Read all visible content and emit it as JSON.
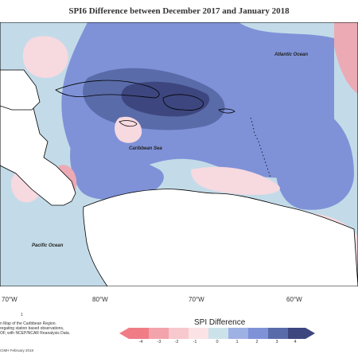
{
  "title": "SPI6 Difference between December 2017 and January 2018",
  "map": {
    "ocean_labels": [
      "Atlantic Ocean",
      "Caribbean Sea",
      "Pacific Ocean"
    ],
    "longitude_ticks": [
      "70°W",
      "80°W",
      "70°W",
      "60°W"
    ],
    "colors": {
      "blue_light": "#c3dbe8",
      "blue_mid": "#7f92d8",
      "blue_dark": "#5a6ba9",
      "blue_deep": "#3d467f",
      "pink_light": "#f7d9e0",
      "pink_mid": "#ecaab5",
      "land": "#ffffff",
      "coast": "#000000"
    }
  },
  "legend": {
    "title": "SPI Difference",
    "ticks": [
      "-4",
      "-3",
      "-2",
      "-1",
      "0",
      "1",
      "2",
      "3",
      "4"
    ],
    "colors": [
      "#f07c86",
      "#f3a3ab",
      "#f7c8cd",
      "#fbe2e5",
      "#cce2ea",
      "#9fb1e3",
      "#7f92d8",
      "#5a6ba9",
      "#3d467f"
    ]
  },
  "notes": [
    "n Map of the Caribbean Region.",
    "regating station based observations,",
    "OF, with NCEP/NCAR Reanalysis Data."
  ],
  "marker": "1",
  "footer": "CIMH February 2018"
}
